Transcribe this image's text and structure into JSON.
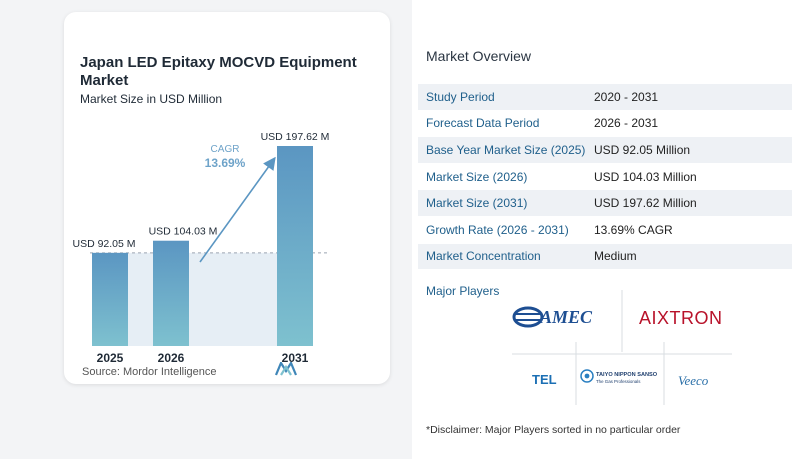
{
  "chart_data": {
    "type": "bar",
    "title": "Japan LED Epitaxy MOCVD Equipment Market",
    "subtitle": "Market Size in USD Million",
    "categories": [
      "2025",
      "2026",
      "2031"
    ],
    "values": [
      92.05,
      104.03,
      197.62
    ],
    "value_labels": [
      "USD 92.05 M",
      "USD 104.03 M",
      "USD 197.62 M"
    ],
    "annotation": {
      "label": "CAGR",
      "value": "13.69%"
    },
    "ylim": [
      0,
      200
    ],
    "grid": false,
    "colors": {
      "bar": "#5b96c2",
      "bar_bottom": "#7ec1cf",
      "cagr": "#6ea3c9",
      "baseline_fill": "#e6eef5"
    }
  },
  "source": "Source:  Mordor Intelligence",
  "overview": {
    "title": "Market Overview",
    "rows": [
      {
        "label": "Study Period",
        "value": "2020 - 2031"
      },
      {
        "label": "Forecast Data Period",
        "value": "2026 - 2031"
      },
      {
        "label": "Base Year Market Size (2025)",
        "value": "USD 92.05 Million"
      },
      {
        "label": "Market Size (2026)",
        "value": "USD 104.03 Million"
      },
      {
        "label": "Market Size (2031)",
        "value": "USD 197.62 Million"
      },
      {
        "label": "Growth Rate (2026 - 2031)",
        "value": "13.69% CAGR"
      },
      {
        "label": "Market Concentration",
        "value": "Medium"
      }
    ]
  },
  "players": {
    "title": "Major Players",
    "names": [
      "AMEC",
      "AIXTRON",
      "TEL",
      "TAIYO NIPPON SANSO",
      "The Gas Professionals",
      "Veeco"
    ]
  },
  "disclaimer": "*Disclaimer: Major Players sorted in no particular order"
}
